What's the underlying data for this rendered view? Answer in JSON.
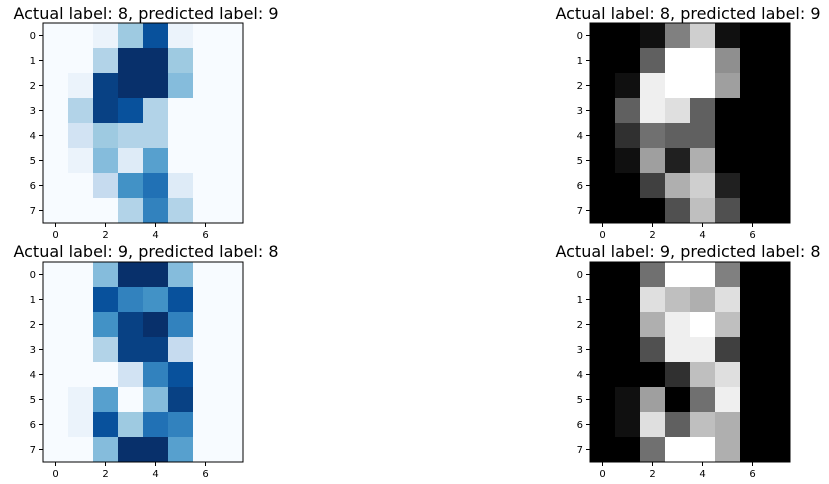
{
  "chart_data": [
    {
      "type": "heatmap",
      "title": "Actual label: 8, predicted label: 9",
      "colormap": "Blues",
      "xticks": [
        "0",
        "2",
        "4",
        "6"
      ],
      "yticks": [
        "0",
        "1",
        "2",
        "3",
        "4",
        "5",
        "6",
        "7"
      ],
      "values": [
        [
          0,
          0,
          1,
          6,
          14,
          1,
          0,
          0
        ],
        [
          0,
          0,
          5,
          16,
          16,
          6,
          0,
          0
        ],
        [
          0,
          1,
          15,
          16,
          16,
          7,
          0,
          0
        ],
        [
          0,
          5,
          15,
          14,
          5,
          0,
          0,
          0
        ],
        [
          0,
          3,
          6,
          5,
          5,
          0,
          0,
          0
        ],
        [
          0,
          1,
          7,
          2,
          9,
          0,
          0,
          0
        ],
        [
          0,
          0,
          4,
          10,
          12,
          2,
          0,
          0
        ],
        [
          0,
          0,
          0,
          5,
          11,
          5,
          0,
          0
        ]
      ],
      "vmin": 0,
      "vmax": 16
    },
    {
      "type": "heatmap",
      "title": "Actual label: 8, predicted label: 9",
      "colormap": "gray",
      "xticks": [
        "0",
        "2",
        "4",
        "6"
      ],
      "yticks": [
        "0",
        "1",
        "2",
        "3",
        "4",
        "5",
        "6",
        "7"
      ],
      "values": [
        [
          0,
          0,
          1,
          8,
          13,
          1,
          0,
          0
        ],
        [
          0,
          0,
          6,
          16,
          16,
          9,
          0,
          0
        ],
        [
          0,
          1,
          15,
          16,
          16,
          10,
          0,
          0
        ],
        [
          0,
          6,
          15,
          14,
          6,
          0,
          0,
          0
        ],
        [
          0,
          3,
          7,
          6,
          6,
          0,
          0,
          0
        ],
        [
          0,
          1,
          10,
          2,
          11,
          0,
          0,
          0
        ],
        [
          0,
          0,
          4,
          11,
          13,
          2,
          0,
          0
        ],
        [
          0,
          0,
          0,
          5,
          12,
          5,
          0,
          0
        ]
      ],
      "vmin": 0,
      "vmax": 16
    },
    {
      "type": "heatmap",
      "title": "Actual label: 9, predicted label: 8",
      "colormap": "Blues",
      "xticks": [
        "0",
        "2",
        "4",
        "6"
      ],
      "yticks": [
        "0",
        "1",
        "2",
        "3",
        "4",
        "5",
        "6",
        "7"
      ],
      "values": [
        [
          0,
          0,
          7,
          16,
          16,
          7,
          0,
          0
        ],
        [
          0,
          0,
          14,
          11,
          10,
          14,
          0,
          0
        ],
        [
          0,
          0,
          10,
          15,
          16,
          11,
          0,
          0
        ],
        [
          0,
          0,
          5,
          15,
          15,
          4,
          0,
          0
        ],
        [
          0,
          0,
          0,
          3,
          11,
          14,
          0,
          0
        ],
        [
          0,
          1,
          9,
          0,
          7,
          15,
          0,
          0
        ],
        [
          0,
          1,
          14,
          6,
          12,
          11,
          0,
          0
        ],
        [
          0,
          0,
          7,
          16,
          16,
          9,
          0,
          0
        ]
      ],
      "vmin": 0,
      "vmax": 16
    },
    {
      "type": "heatmap",
      "title": "Actual label: 9, predicted label: 8",
      "colormap": "gray",
      "xticks": [
        "0",
        "2",
        "4",
        "6"
      ],
      "yticks": [
        "0",
        "1",
        "2",
        "3",
        "4",
        "5",
        "6",
        "7"
      ],
      "values": [
        [
          0,
          0,
          7,
          16,
          16,
          8,
          0,
          0
        ],
        [
          0,
          0,
          14,
          12,
          11,
          14,
          0,
          0
        ],
        [
          0,
          0,
          11,
          15,
          16,
          12,
          0,
          0
        ],
        [
          0,
          0,
          5,
          15,
          15,
          4,
          0,
          0
        ],
        [
          0,
          0,
          0,
          3,
          12,
          14,
          0,
          0
        ],
        [
          0,
          1,
          10,
          0,
          7,
          15,
          0,
          0
        ],
        [
          0,
          1,
          14,
          6,
          12,
          11,
          0,
          0
        ],
        [
          0,
          0,
          7,
          16,
          16,
          11,
          0,
          0
        ]
      ],
      "vmin": 0,
      "vmax": 16
    }
  ]
}
